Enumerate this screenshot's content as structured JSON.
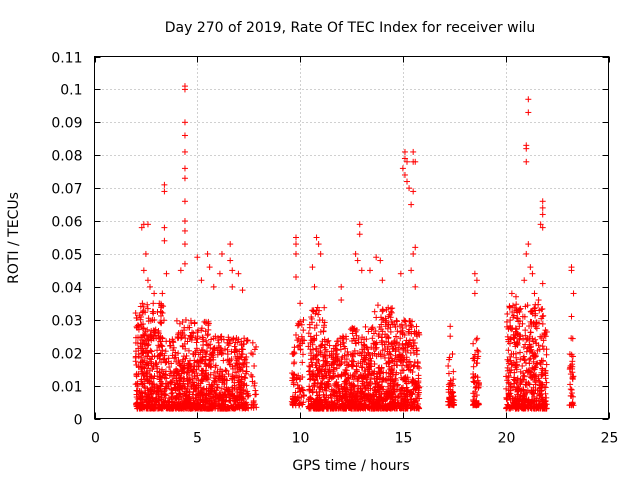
{
  "chart_data": {
    "type": "scatter",
    "title": "Day 270 of 2019, Rate Of TEC Index for receiver wilu",
    "xlabel": "GPS time / hours",
    "ylabel": "ROTI / TECUs",
    "xlim": [
      0,
      25
    ],
    "ylim": [
      0,
      0.11
    ],
    "x_ticks": [
      0,
      5,
      10,
      15,
      20,
      25
    ],
    "y_ticks": [
      0,
      0.01,
      0.02,
      0.03,
      0.04,
      0.05,
      0.06,
      0.07,
      0.08,
      0.09,
      0.1,
      0.11
    ],
    "x_tick_labels": [
      "0",
      "5",
      "10",
      "15",
      "20",
      "25"
    ],
    "y_tick_labels": [
      "0",
      "0.01",
      "0.02",
      "0.03",
      "0.04",
      "0.05",
      "0.06",
      "0.07",
      "0.08",
      "0.09",
      "0.1",
      "0.11"
    ],
    "grid": true,
    "marker": "+",
    "color": "#ff0000",
    "clusters": [
      {
        "x_range": [
          2.0,
          3.4
        ],
        "y_range": [
          0.003,
          0.035
        ],
        "count": 420
      },
      {
        "x_range": [
          3.4,
          4.0
        ],
        "y_range": [
          0.003,
          0.025
        ],
        "count": 120
      },
      {
        "x_range": [
          4.0,
          5.6
        ],
        "y_range": [
          0.003,
          0.03
        ],
        "count": 460
      },
      {
        "x_range": [
          5.6,
          7.5
        ],
        "y_range": [
          0.003,
          0.025
        ],
        "count": 420
      },
      {
        "x_range": [
          7.6,
          7.9
        ],
        "y_range": [
          0.003,
          0.022
        ],
        "count": 20
      },
      {
        "x_range": [
          9.6,
          10.2
        ],
        "y_range": [
          0.004,
          0.03
        ],
        "count": 90
      },
      {
        "x_range": [
          10.4,
          11.2
        ],
        "y_range": [
          0.003,
          0.035
        ],
        "count": 230
      },
      {
        "x_range": [
          11.2,
          12.4
        ],
        "y_range": [
          0.003,
          0.025
        ],
        "count": 280
      },
      {
        "x_range": [
          12.4,
          13.5
        ],
        "y_range": [
          0.003,
          0.028
        ],
        "count": 300
      },
      {
        "x_range": [
          13.5,
          14.5
        ],
        "y_range": [
          0.003,
          0.035
        ],
        "count": 300
      },
      {
        "x_range": [
          14.5,
          15.8
        ],
        "y_range": [
          0.003,
          0.03
        ],
        "count": 320
      },
      {
        "x_range": [
          17.2,
          17.5
        ],
        "y_range": [
          0.004,
          0.02
        ],
        "count": 60
      },
      {
        "x_range": [
          18.4,
          18.7
        ],
        "y_range": [
          0.004,
          0.025
        ],
        "count": 70
      },
      {
        "x_range": [
          20.0,
          22.0
        ],
        "y_range": [
          0.003,
          0.035
        ],
        "count": 520
      },
      {
        "x_range": [
          23.1,
          23.3
        ],
        "y_range": [
          0.004,
          0.025
        ],
        "count": 35
      }
    ],
    "outliers": [
      [
        2.3,
        0.058
      ],
      [
        2.4,
        0.059
      ],
      [
        2.6,
        0.059
      ],
      [
        2.5,
        0.05
      ],
      [
        2.4,
        0.045
      ],
      [
        2.6,
        0.042
      ],
      [
        2.7,
        0.04
      ],
      [
        2.9,
        0.038
      ],
      [
        3.4,
        0.071
      ],
      [
        3.4,
        0.069
      ],
      [
        3.4,
        0.058
      ],
      [
        3.4,
        0.054
      ],
      [
        3.5,
        0.044
      ],
      [
        3.3,
        0.038
      ],
      [
        4.4,
        0.101
      ],
      [
        4.4,
        0.1
      ],
      [
        4.4,
        0.09
      ],
      [
        4.4,
        0.086
      ],
      [
        4.4,
        0.081
      ],
      [
        4.4,
        0.076
      ],
      [
        4.4,
        0.073
      ],
      [
        4.4,
        0.066
      ],
      [
        4.4,
        0.06
      ],
      [
        4.4,
        0.057
      ],
      [
        4.4,
        0.053
      ],
      [
        4.4,
        0.047
      ],
      [
        4.2,
        0.045
      ],
      [
        5.0,
        0.049
      ],
      [
        5.2,
        0.042
      ],
      [
        5.5,
        0.05
      ],
      [
        5.6,
        0.046
      ],
      [
        5.8,
        0.04
      ],
      [
        6.1,
        0.044
      ],
      [
        6.2,
        0.05
      ],
      [
        6.6,
        0.053
      ],
      [
        6.6,
        0.048
      ],
      [
        6.7,
        0.045
      ],
      [
        6.7,
        0.04
      ],
      [
        7.0,
        0.044
      ],
      [
        7.2,
        0.039
      ],
      [
        7.7,
        0.023
      ],
      [
        7.8,
        0.021
      ],
      [
        9.8,
        0.055
      ],
      [
        9.8,
        0.053
      ],
      [
        9.8,
        0.05
      ],
      [
        9.8,
        0.043
      ],
      [
        10.0,
        0.035
      ],
      [
        10.8,
        0.055
      ],
      [
        10.9,
        0.053
      ],
      [
        11.0,
        0.05
      ],
      [
        10.6,
        0.046
      ],
      [
        10.7,
        0.04
      ],
      [
        12.0,
        0.04
      ],
      [
        12.0,
        0.036
      ],
      [
        12.7,
        0.05
      ],
      [
        12.8,
        0.048
      ],
      [
        12.9,
        0.059
      ],
      [
        12.9,
        0.056
      ],
      [
        13.0,
        0.045
      ],
      [
        13.4,
        0.045
      ],
      [
        13.7,
        0.049
      ],
      [
        13.9,
        0.048
      ],
      [
        14.0,
        0.042
      ],
      [
        15.1,
        0.081
      ],
      [
        15.1,
        0.079
      ],
      [
        15.2,
        0.078
      ],
      [
        15.0,
        0.076
      ],
      [
        15.1,
        0.074
      ],
      [
        15.2,
        0.072
      ],
      [
        15.3,
        0.07
      ],
      [
        15.5,
        0.081
      ],
      [
        15.5,
        0.078
      ],
      [
        15.6,
        0.078
      ],
      [
        15.5,
        0.069
      ],
      [
        15.4,
        0.065
      ],
      [
        15.6,
        0.052
      ],
      [
        15.5,
        0.05
      ],
      [
        15.4,
        0.045
      ],
      [
        15.6,
        0.04
      ],
      [
        14.9,
        0.044
      ],
      [
        17.3,
        0.028
      ],
      [
        17.3,
        0.025
      ],
      [
        18.5,
        0.044
      ],
      [
        18.6,
        0.042
      ],
      [
        18.5,
        0.038
      ],
      [
        21.1,
        0.097
      ],
      [
        21.1,
        0.093
      ],
      [
        21.0,
        0.083
      ],
      [
        21.0,
        0.082
      ],
      [
        21.0,
        0.078
      ],
      [
        21.8,
        0.066
      ],
      [
        21.8,
        0.064
      ],
      [
        21.8,
        0.062
      ],
      [
        21.7,
        0.059
      ],
      [
        21.8,
        0.058
      ],
      [
        21.1,
        0.053
      ],
      [
        21.0,
        0.05
      ],
      [
        21.2,
        0.046
      ],
      [
        21.3,
        0.044
      ],
      [
        20.9,
        0.042
      ],
      [
        21.8,
        0.041
      ],
      [
        20.3,
        0.038
      ],
      [
        20.5,
        0.037
      ],
      [
        21.4,
        0.038
      ],
      [
        21.6,
        0.036
      ],
      [
        23.2,
        0.046
      ],
      [
        23.2,
        0.045
      ],
      [
        23.3,
        0.038
      ],
      [
        23.2,
        0.031
      ]
    ]
  }
}
